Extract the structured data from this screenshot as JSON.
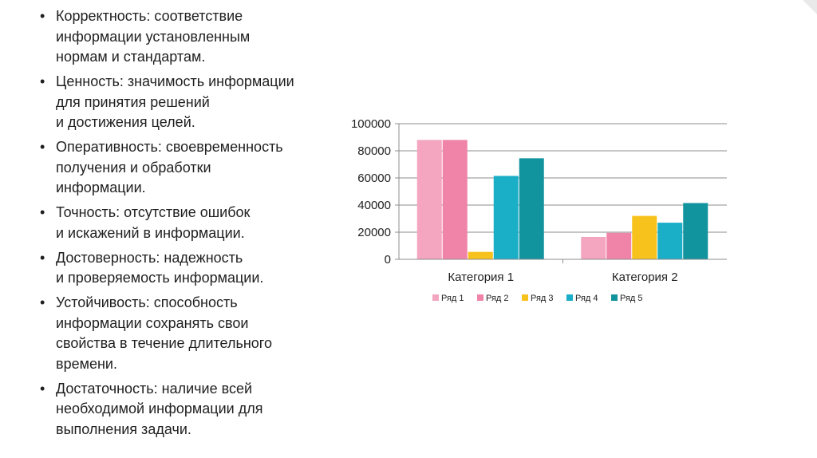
{
  "bullets": [
    {
      "lines": [
        "Корректность: соответствие",
        "информации установленным",
        "нормам и стандартам."
      ]
    },
    {
      "lines": [
        "Ценность: значимость информации",
        "для принятия решений",
        "и достижения целей."
      ]
    },
    {
      "lines": [
        "Оперативность: своевременность",
        "получения и обработки",
        "информации."
      ]
    },
    {
      "lines": [
        "Точность: отсутствие ошибок",
        "и искажений в информации."
      ]
    },
    {
      "lines": [
        "Достоверность: надежность",
        "и проверяемость информации."
      ]
    },
    {
      "lines": [
        "Устойчивость: способность",
        "информации сохранять свои",
        "свойства в течение длительного",
        "времени."
      ]
    },
    {
      "lines": [
        "Достаточность: наличие всей",
        "необходимой информации для",
        "выполнения задачи."
      ]
    }
  ],
  "chart_data": {
    "type": "bar",
    "categories": [
      "Категория 1",
      "Категория 2"
    ],
    "series": [
      {
        "name": "Ряд 1",
        "color": "#f4a5c0",
        "values": [
          88000,
          16500
        ]
      },
      {
        "name": "Ряд 2",
        "color": "#f084a8",
        "values": [
          88000,
          19500
        ]
      },
      {
        "name": "Ряд 3",
        "color": "#f8c21c",
        "values": [
          5500,
          32000
        ]
      },
      {
        "name": "Ряд 4",
        "color": "#1aaec7",
        "values": [
          61500,
          27000
        ]
      },
      {
        "name": "Ряд 5",
        "color": "#12949f",
        "values": [
          74500,
          41500
        ]
      }
    ],
    "ylim": [
      0,
      100000
    ],
    "yticks": [
      "0",
      "20000",
      "40000",
      "60000",
      "80000",
      "100000"
    ],
    "grid": true,
    "legend": "bottom"
  }
}
